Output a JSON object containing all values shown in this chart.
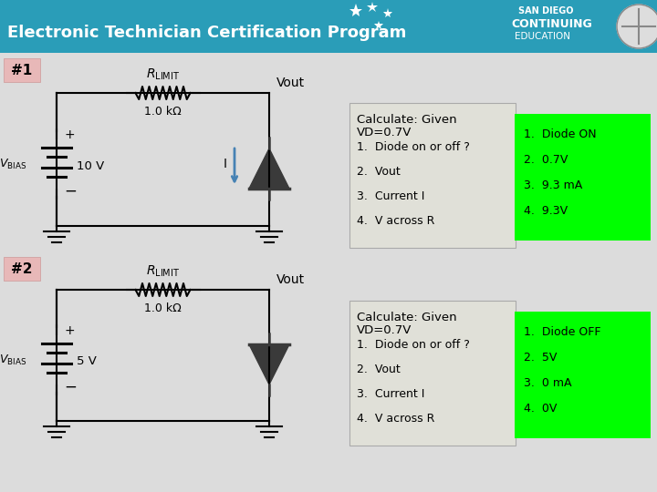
{
  "title": "Electronic Technician Certification Program",
  "title_bg": "#2a9db8",
  "title_fg": "white",
  "title_fontsize": 13,
  "bg_color": "#c8c8c8",
  "circuit_bg": "#dcdcdc",
  "label1": "#1",
  "label2": "#2",
  "label_bg": "#e8b8b8",
  "vout_label": "Vout",
  "current_label": "I",
  "calc_bg": "#e0e0d8",
  "ans_bg": "#00ff00",
  "calc1_title": "Calculate: Given",
  "calc1_vd": "VD=0.7V",
  "calc1_items": [
    "1.  Diode on or off ?",
    "2.  Vout",
    "3.  Current I",
    "4.  V across R"
  ],
  "ans1_items": [
    "1.  Diode ON",
    "2.  0.7V",
    "3.  9.3 mA",
    "4.  9.3V"
  ],
  "calc2_title": "Calculate: Given",
  "calc2_vd": "VD=0.7V",
  "calc2_items": [
    "1.  Diode on or off ?",
    "2.  Vout",
    "3.  Current I",
    "4.  V across R"
  ],
  "ans2_items": [
    "1.  Diode OFF",
    "2.  5V",
    "3.  0 mA",
    "4.  0V"
  ],
  "resistor_label1": "1.0 kΩ",
  "resistor_label2": "1.0 kΩ",
  "voltage1": "10 V",
  "voltage2": "5 V"
}
